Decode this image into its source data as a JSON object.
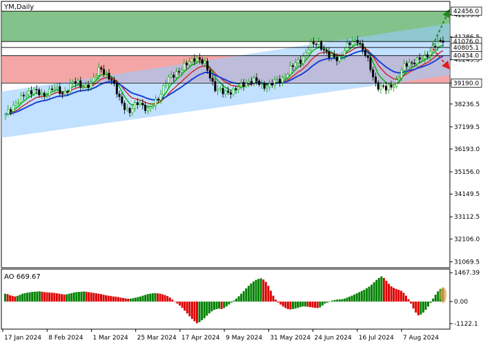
{
  "chart_data": {
    "type": "candlestick",
    "title": "YM,Daily",
    "x_tick_labels": [
      "17 Jan 2024",
      "8 Feb 2024",
      "1 Mar 2024",
      "25 Mar 2024",
      "17 Apr 2024",
      "9 May 2024",
      "31 May 2024",
      "24 Jun 2024",
      "16 Jul 2024",
      "7 Aug 2024"
    ],
    "price_axis": {
      "ylim": [
        30800,
        42900
      ],
      "ticks": [
        42293.0,
        41286.5,
        40249.5,
        39190.0,
        38236.5,
        37199.5,
        36193.0,
        35156.0,
        34149.5,
        33112.5,
        32106.0,
        31069.5
      ],
      "tick_labels": [
        "42293.0",
        "41286.5",
        "40249.5",
        "39190.0",
        "38236.5",
        "37199.5",
        "36193.0",
        "35156.0",
        "34149.5",
        "33112.5",
        "32106.0",
        "31069.5"
      ]
    },
    "levels": [
      {
        "value": 42456.0,
        "label": "42456.0",
        "color": "#000000"
      },
      {
        "value": 41076.0,
        "label": "41076.0",
        "color": "#000000"
      },
      {
        "value": 40805.1,
        "label": "40805.1",
        "color": "#000000"
      },
      {
        "value": 40434.0,
        "label": "40434.0",
        "color": "#000000"
      },
      {
        "value": 39190.0,
        "label": "39190.0",
        "color": "#000000"
      }
    ],
    "zones": [
      {
        "name": "upper",
        "from": 41076.0,
        "to": 42456.0,
        "color": "#4fa85a"
      },
      {
        "name": "lower",
        "from": 39190.0,
        "to": 40434.0,
        "color": "#f08080"
      }
    ],
    "channel_color": "#99ccff",
    "candle_colors": {
      "up": "#00aa00",
      "down": "#000000"
    },
    "moving_average_colors": [
      "#00b000",
      "#cc2222",
      "#1a3fd6"
    ],
    "price_path": [
      37700,
      38300,
      38600,
      38950,
      38500,
      39100,
      38600,
      39300,
      39000,
      39200,
      39900,
      39400,
      38500,
      37800,
      38400,
      37900,
      38500,
      39300,
      39700,
      40000,
      40400,
      40000,
      39000,
      38700,
      38900,
      39100,
      39400,
      39000,
      39200,
      39300,
      39900,
      40200,
      40900,
      41000,
      40400,
      40300,
      40900,
      41200,
      40300,
      39100,
      38900,
      39200,
      40000,
      40200,
      40300,
      40900,
      41100
    ],
    "projections": [
      {
        "name": "bullish-arrow",
        "from": 40900,
        "to": 42500,
        "color": "#1e8c1e"
      },
      {
        "name": "bearish-arrow",
        "from": 40750,
        "to": 39850,
        "color": "#e02020"
      }
    ],
    "oscillator": {
      "name": "AO",
      "label": "AO 669.67",
      "ticks": [
        1467.39,
        0.0,
        -1122.1
      ],
      "tick_labels": [
        "1467.39",
        "0.00",
        "-1122.1"
      ],
      "ylim": [
        -1400,
        1650
      ],
      "up_color": "#008000",
      "down_color": "#dd0000",
      "values": [
        400,
        380,
        320,
        290,
        260,
        290,
        340,
        400,
        430,
        450,
        470,
        490,
        500,
        510,
        520,
        500,
        480,
        470,
        460,
        450,
        440,
        420,
        400,
        380,
        360,
        370,
        400,
        430,
        460,
        480,
        490,
        500,
        510,
        500,
        480,
        460,
        440,
        420,
        400,
        380,
        350,
        320,
        300,
        280,
        260,
        250,
        230,
        200,
        180,
        160,
        140,
        150,
        170,
        200,
        230,
        260,
        300,
        340,
        380,
        400,
        420,
        430,
        420,
        400,
        370,
        330,
        280,
        200,
        100,
        0,
        -100,
        -200,
        -320,
        -460,
        -600,
        -750,
        -880,
        -1000,
        -1100,
        -1050,
        -950,
        -850,
        -720,
        -600,
        -500,
        -420,
        -380,
        -360,
        -380,
        -330,
        -250,
        -150,
        -50,
        50,
        150,
        270,
        400,
        530,
        670,
        800,
        920,
        1020,
        1100,
        1150,
        1180,
        1120,
        1000,
        800,
        550,
        300,
        100,
        -50,
        -150,
        -250,
        -330,
        -380,
        -400,
        -380,
        -350,
        -320,
        -280,
        -250,
        -250,
        -260,
        -280,
        -300,
        -320,
        -330,
        -300,
        -200,
        -100,
        -50,
        0,
        50,
        80,
        100,
        110,
        120,
        150,
        200,
        250,
        300,
        360,
        420,
        480,
        540,
        600,
        680,
        760,
        860,
        980,
        1100,
        1200,
        1280,
        1200,
        1060,
        900,
        780,
        700,
        640,
        600,
        550,
        450,
        300,
        120,
        -100,
        -350,
        -560,
        -700,
        -660,
        -560,
        -420,
        -250,
        -60,
        150,
        350,
        520,
        640,
        670
      ]
    }
  }
}
